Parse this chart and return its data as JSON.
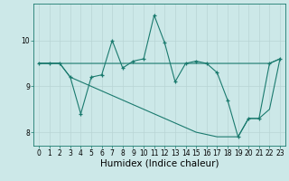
{
  "xlabel": "Humidex (Indice chaleur)",
  "ylabel": "",
  "bg_color": "#cce8e8",
  "line_color": "#1a7a6e",
  "grid_color": "#b8d4d4",
  "x_data": [
    0,
    1,
    2,
    3,
    4,
    5,
    6,
    7,
    8,
    9,
    10,
    11,
    12,
    13,
    14,
    15,
    16,
    17,
    18,
    19,
    20,
    21,
    22,
    23
  ],
  "y_main": [
    9.5,
    9.5,
    9.5,
    9.2,
    8.4,
    9.2,
    9.25,
    10.0,
    9.4,
    9.55,
    9.6,
    10.55,
    9.95,
    9.1,
    9.5,
    9.55,
    9.5,
    9.3,
    8.7,
    7.9,
    8.3,
    8.3,
    9.5,
    9.6
  ],
  "y_upper": [
    9.5,
    9.5,
    9.5,
    9.5,
    9.5,
    9.5,
    9.5,
    9.5,
    9.5,
    9.5,
    9.5,
    9.5,
    9.5,
    9.5,
    9.5,
    9.5,
    9.5,
    9.5,
    9.5,
    9.5,
    9.5,
    9.5,
    9.5,
    9.6
  ],
  "y_lower": [
    9.5,
    9.5,
    9.5,
    9.2,
    9.1,
    9.0,
    8.9,
    8.8,
    8.7,
    8.6,
    8.5,
    8.4,
    8.3,
    8.2,
    8.1,
    8.0,
    7.95,
    7.9,
    7.9,
    7.9,
    8.3,
    8.3,
    8.5,
    9.6
  ],
  "ylim": [
    7.7,
    10.8
  ],
  "xlim": [
    -0.5,
    23.5
  ],
  "yticks": [
    8,
    9,
    10
  ],
  "xticks": [
    0,
    1,
    2,
    3,
    4,
    5,
    6,
    7,
    8,
    9,
    10,
    11,
    12,
    13,
    14,
    15,
    16,
    17,
    18,
    19,
    20,
    21,
    22,
    23
  ],
  "tick_fontsize": 5.5,
  "xlabel_fontsize": 7.5
}
